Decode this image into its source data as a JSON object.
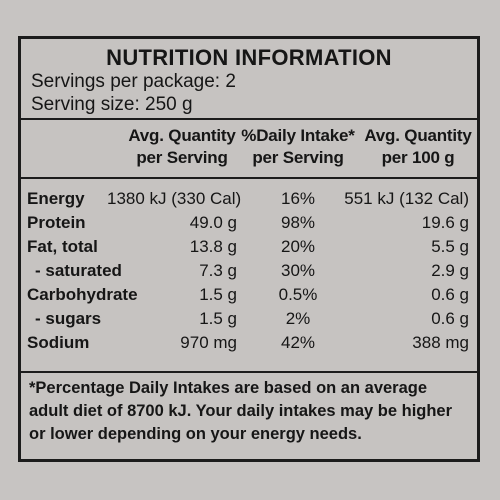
{
  "panel": {
    "title": "NUTRITION INFORMATION",
    "servings_per_package": "Servings per package: 2",
    "serving_size": "Serving size: 250 g"
  },
  "headers": [
    {
      "line1": "Avg. Quantity",
      "line2": "per Serving"
    },
    {
      "line1": "%Daily Intake*",
      "line2": "per Serving"
    },
    {
      "line1": "Avg. Quantity",
      "line2": "per 100 g"
    }
  ],
  "rows": [
    {
      "label": "Energy",
      "per_serving": "1380 kJ (330 Cal)",
      "daily_intake": "16%",
      "per_100g": "551 kJ (132 Cal)"
    },
    {
      "label": "Protein",
      "per_serving": "49.0 g",
      "daily_intake": "98%",
      "per_100g": "19.6 g"
    },
    {
      "label": "Fat, total",
      "per_serving": "13.8 g",
      "daily_intake": "20%",
      "per_100g": "5.5 g"
    },
    {
      "label": "- saturated",
      "per_serving": "7.3 g",
      "daily_intake": "30%",
      "per_100g": "2.9 g"
    },
    {
      "label": "Carbohydrate",
      "per_serving": "1.5 g",
      "daily_intake": "0.5%",
      "per_100g": "0.6 g"
    },
    {
      "label": "- sugars",
      "per_serving": "1.5 g",
      "daily_intake": "2%",
      "per_100g": "0.6 g"
    },
    {
      "label": "Sodium",
      "per_serving": "970 mg",
      "daily_intake": "42%",
      "per_100g": "388 mg"
    }
  ],
  "footnote": "*Percentage Daily Intakes are based on an average adult diet of 8700 kJ. Your daily intakes may be higher or lower depending on your energy needs."
}
